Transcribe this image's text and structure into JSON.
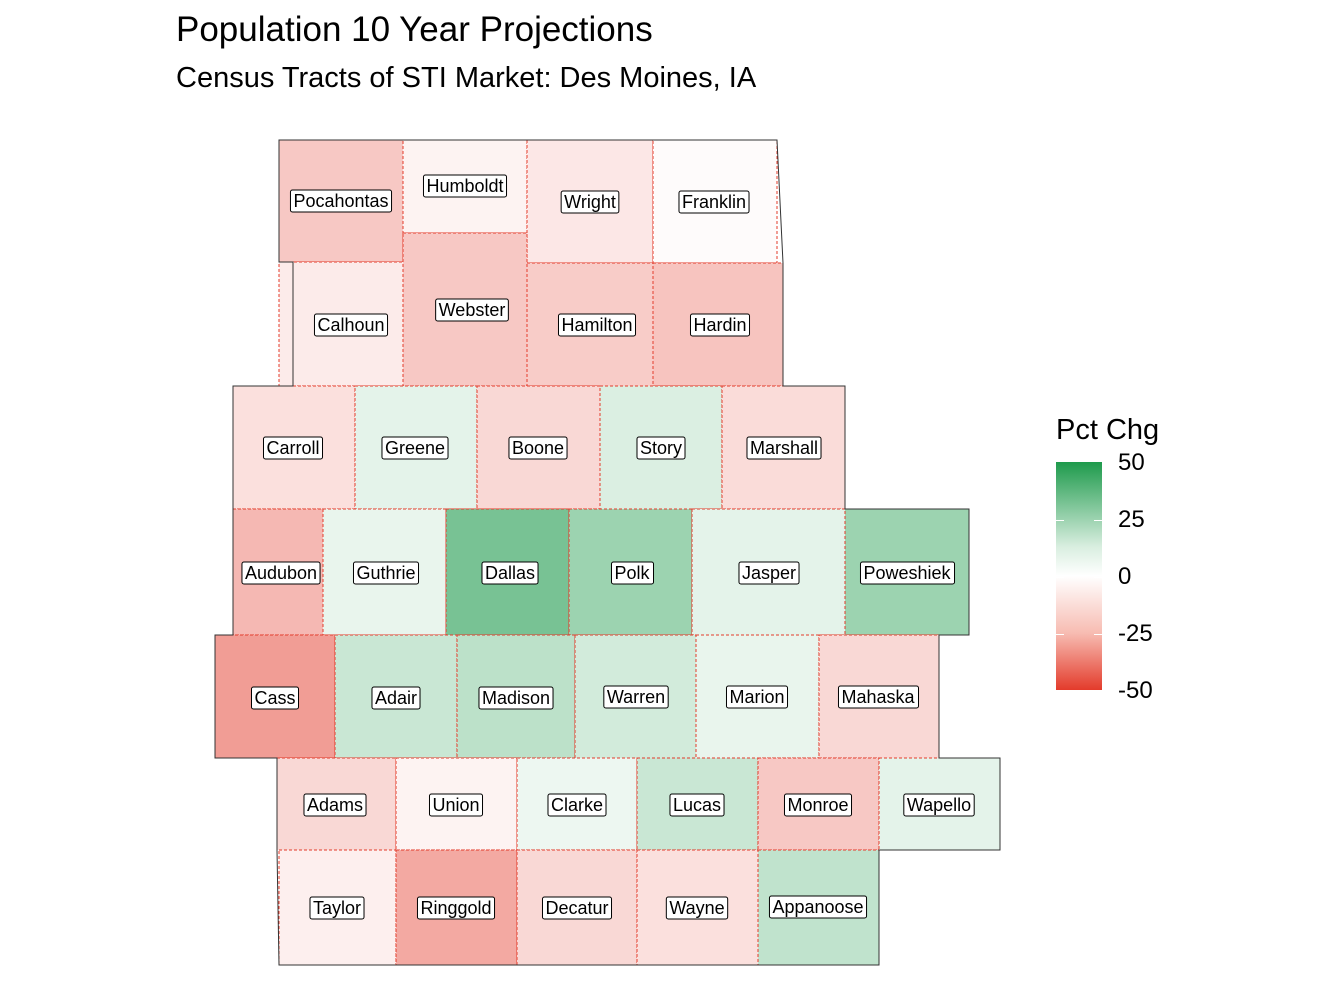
{
  "title": "Population 10 Year Projections",
  "subtitle": "Census Tracts of STI Market: Des Moines, IA",
  "legend": {
    "title": "Pct Chg",
    "ticks": [
      "50",
      "25",
      "0",
      "-25",
      "-50"
    ],
    "scale_range": [
      -50,
      50
    ],
    "colors": {
      "high": "#1e9a4c",
      "mid": "#ffffff",
      "low": "#e33b2b"
    }
  },
  "counties": [
    {
      "name": "Pocahontas",
      "pct_chg": -14
    },
    {
      "name": "Humboldt",
      "pct_chg": -3
    },
    {
      "name": "Wright",
      "pct_chg": -6
    },
    {
      "name": "Franklin",
      "pct_chg": -1
    },
    {
      "name": "Calhoun",
      "pct_chg": -5
    },
    {
      "name": "Webster",
      "pct_chg": -14
    },
    {
      "name": "Hamilton",
      "pct_chg": -13
    },
    {
      "name": "Hardin",
      "pct_chg": -15
    },
    {
      "name": "Carroll",
      "pct_chg": -8
    },
    {
      "name": "Greene",
      "pct_chg": 6
    },
    {
      "name": "Boone",
      "pct_chg": -10
    },
    {
      "name": "Story",
      "pct_chg": 8
    },
    {
      "name": "Marshall",
      "pct_chg": -9
    },
    {
      "name": "Audubon",
      "pct_chg": -18
    },
    {
      "name": "Guthrie",
      "pct_chg": 5
    },
    {
      "name": "Dallas",
      "pct_chg": 30
    },
    {
      "name": "Polk",
      "pct_chg": 22
    },
    {
      "name": "Jasper",
      "pct_chg": 6
    },
    {
      "name": "Poweshiek",
      "pct_chg": 22
    },
    {
      "name": "Cass",
      "pct_chg": -25
    },
    {
      "name": "Adair",
      "pct_chg": 12
    },
    {
      "name": "Madison",
      "pct_chg": 15
    },
    {
      "name": "Warren",
      "pct_chg": 10
    },
    {
      "name": "Marion",
      "pct_chg": 5
    },
    {
      "name": "Mahaska",
      "pct_chg": -10
    },
    {
      "name": "Adams",
      "pct_chg": -10
    },
    {
      "name": "Union",
      "pct_chg": -3
    },
    {
      "name": "Clarke",
      "pct_chg": 4
    },
    {
      "name": "Lucas",
      "pct_chg": 12
    },
    {
      "name": "Monroe",
      "pct_chg": -14
    },
    {
      "name": "Wapello",
      "pct_chg": 6
    },
    {
      "name": "Taylor",
      "pct_chg": -4
    },
    {
      "name": "Ringgold",
      "pct_chg": -22
    },
    {
      "name": "Decatur",
      "pct_chg": -10
    },
    {
      "name": "Wayne",
      "pct_chg": -8
    },
    {
      "name": "Appanoose",
      "pct_chg": 14
    }
  ]
}
